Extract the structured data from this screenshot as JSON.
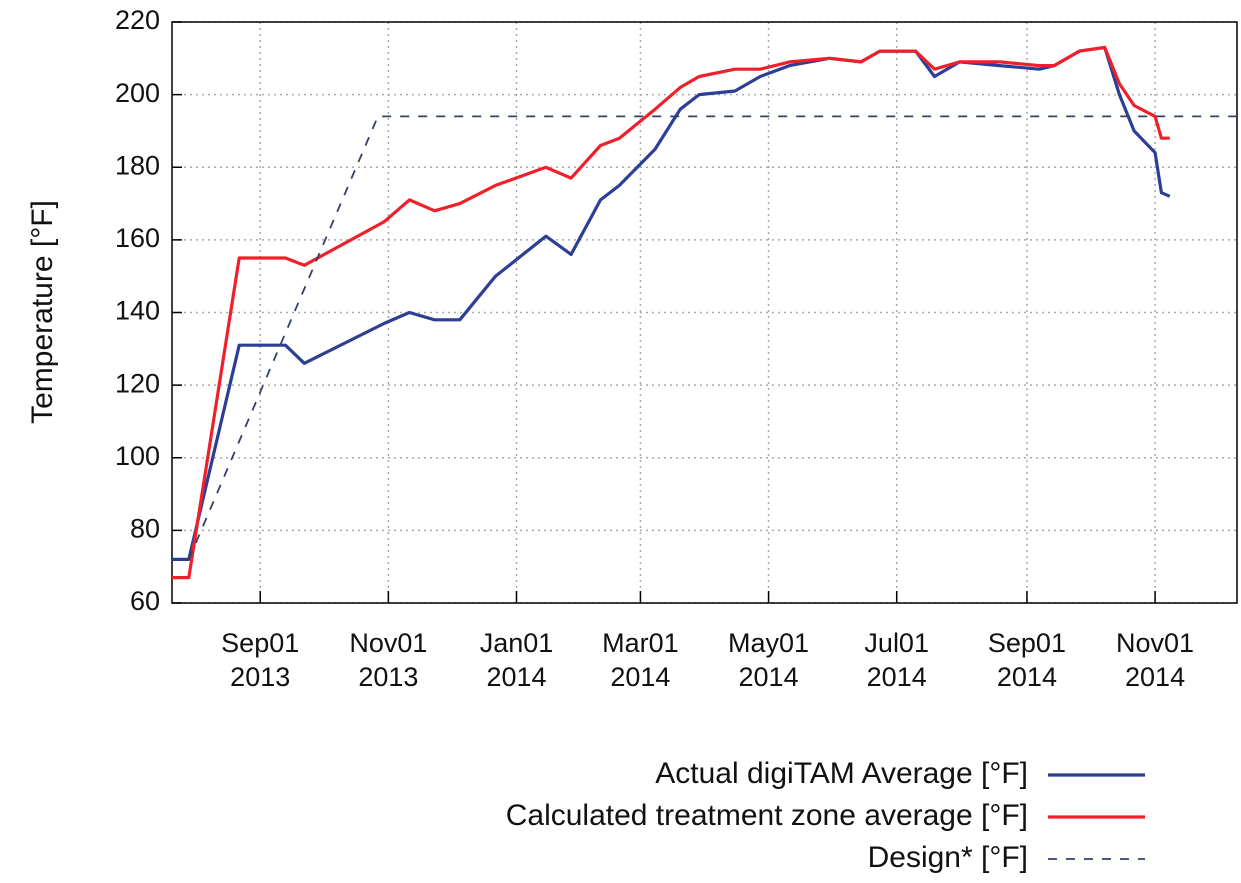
{
  "chart_data": {
    "type": "line",
    "ylabel": "Temperature [°F]",
    "x": [
      "2013-07-21",
      "2013-07-29",
      "2013-08-22",
      "2013-09-13",
      "2013-09-22",
      "2013-10-30",
      "2013-11-11",
      "2013-11-23",
      "2013-12-05",
      "2013-12-22",
      "2014-01-15",
      "2014-01-27",
      "2014-02-10",
      "2014-02-19",
      "2014-03-08",
      "2014-03-20",
      "2014-03-29",
      "2014-04-15",
      "2014-04-27",
      "2014-05-11",
      "2014-05-30",
      "2014-06-14",
      "2014-06-23",
      "2014-07-10",
      "2014-07-19",
      "2014-07-31",
      "2014-08-19",
      "2014-09-07",
      "2014-09-14",
      "2014-09-26",
      "2014-10-08",
      "2014-10-15",
      "2014-10-22",
      "2014-11-01",
      "2014-11-04",
      "2014-11-08"
    ],
    "series": [
      {
        "name": "Actual digiTAM Average [°F]",
        "color": "#2c3e96",
        "dash": false,
        "values": [
          72,
          72,
          131,
          131,
          126,
          137,
          140,
          138,
          138,
          150,
          161,
          156,
          171,
          175,
          185,
          196,
          200,
          201,
          205,
          208,
          210,
          209,
          212,
          212,
          205,
          209,
          208,
          207,
          208,
          212,
          213,
          200,
          190,
          184,
          173,
          172
        ]
      },
      {
        "name": "Calculated treatment zone average [°F]",
        "color": "#f0202a",
        "dash": false,
        "values": [
          67,
          67,
          155,
          155,
          153,
          165,
          171,
          168,
          170,
          175,
          180,
          177,
          186,
          188,
          196,
          202,
          205,
          207,
          207,
          209,
          210,
          209,
          212,
          212,
          207,
          209,
          209,
          208,
          208,
          212,
          213,
          203,
          197,
          194,
          188,
          188
        ]
      },
      {
        "name": "Design* [°F]",
        "color": "#34406a",
        "dash": true,
        "x": [
          "2013-07-29",
          "2013-10-27",
          "2014-12-10"
        ],
        "values": [
          72,
          194,
          194
        ]
      }
    ],
    "xlim": [
      "2013-07-21",
      "2014-12-10"
    ],
    "xticks": [
      {
        "value": "2013-09-01",
        "label": "Sep01 2013"
      },
      {
        "value": "2013-11-01",
        "label": "Nov01 2013"
      },
      {
        "value": "2014-01-01",
        "label": "Jan01 2014"
      },
      {
        "value": "2014-03-01",
        "label": "Mar01 2014"
      },
      {
        "value": "2014-05-01",
        "label": "May01 2014"
      },
      {
        "value": "2014-07-01",
        "label": "Jul01 2014"
      },
      {
        "value": "2014-09-01",
        "label": "Sep01 2014"
      },
      {
        "value": "2014-11-01",
        "label": "Nov01 2014"
      }
    ],
    "ylim": [
      60,
      220
    ],
    "yticks": [
      60,
      80,
      100,
      120,
      140,
      160,
      180,
      200,
      220
    ],
    "grid": true,
    "legend": "bottom-right"
  }
}
